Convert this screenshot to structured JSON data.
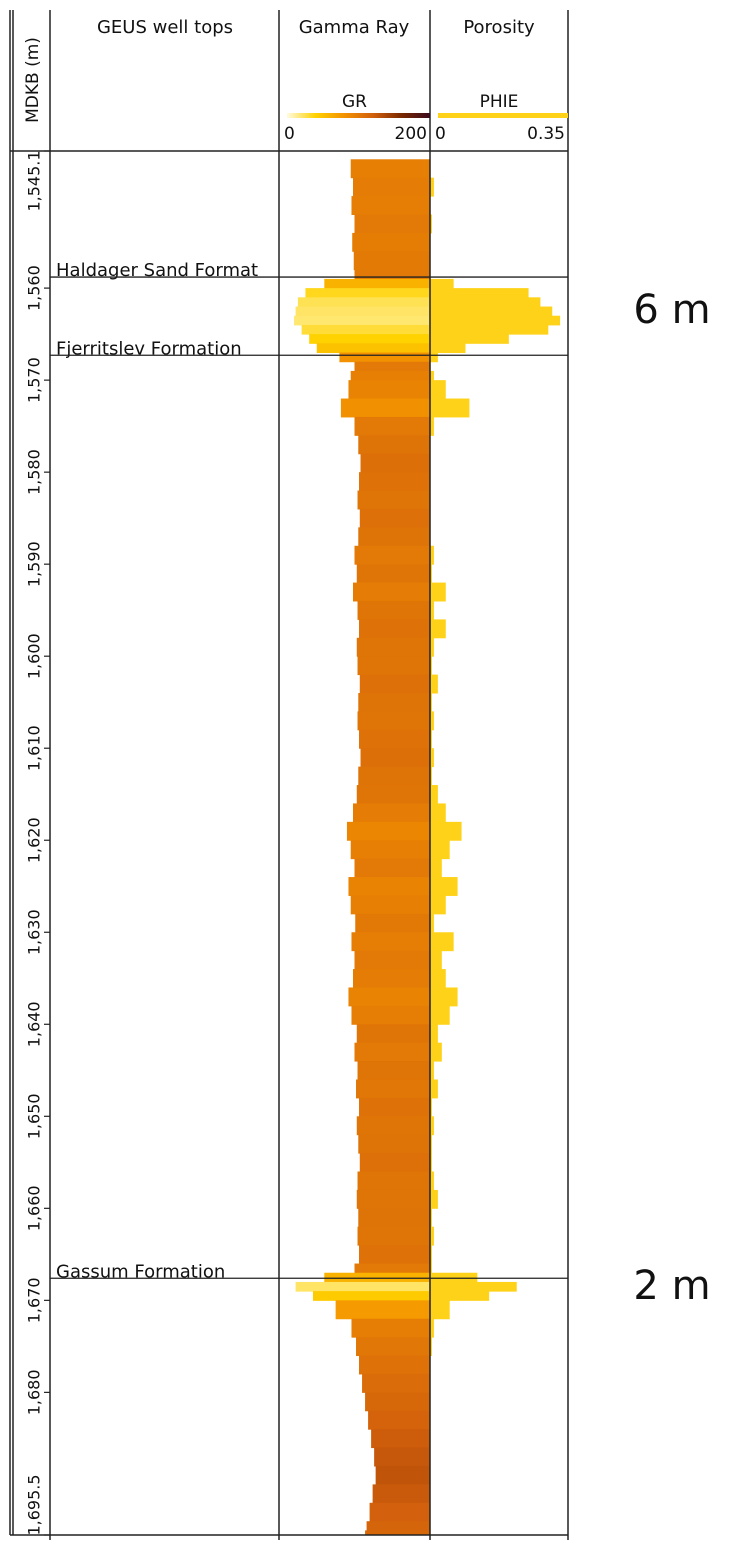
{
  "chart_data": {
    "type": "well_log",
    "ylabel": "MDKB (m)",
    "ylim": [
      1545.1,
      1695.5
    ],
    "yticks": [
      {
        "value": 1545.1,
        "label": "1,545.1"
      },
      {
        "value": 1560,
        "label": "1,560"
      },
      {
        "value": 1570,
        "label": "1,570"
      },
      {
        "value": 1580,
        "label": "1,580"
      },
      {
        "value": 1590,
        "label": "1,590"
      },
      {
        "value": 1600,
        "label": "1,600"
      },
      {
        "value": 1610,
        "label": "1,610"
      },
      {
        "value": 1620,
        "label": "1,620"
      },
      {
        "value": 1630,
        "label": "1,630"
      },
      {
        "value": 1640,
        "label": "1,640"
      },
      {
        "value": 1650,
        "label": "1,650"
      },
      {
        "value": 1660,
        "label": "1,660"
      },
      {
        "value": 1670,
        "label": "1,670"
      },
      {
        "value": 1680,
        "label": "1,680"
      },
      {
        "value": 1695.5,
        "label": "1,695.5"
      }
    ],
    "tops_title": "GEUS well tops",
    "tops": [
      {
        "name": "Haldager Sand Format",
        "depth": 1558.8
      },
      {
        "name": "Fjerritslev Formation",
        "depth": 1567.3
      },
      {
        "name": "Gassum Formation",
        "depth": 1667.6
      }
    ],
    "depth": [
      1546,
      1548,
      1550,
      1552,
      1554,
      1556,
      1558,
      1559,
      1560,
      1561,
      1562,
      1563,
      1564,
      1565,
      1566,
      1567,
      1568,
      1569,
      1570,
      1572,
      1574,
      1576,
      1578,
      1580,
      1582,
      1584,
      1586,
      1588,
      1590,
      1592,
      1594,
      1596,
      1598,
      1600,
      1602,
      1604,
      1606,
      1608,
      1610,
      1612,
      1614,
      1616,
      1618,
      1620,
      1622,
      1624,
      1626,
      1628,
      1630,
      1632,
      1634,
      1636,
      1638,
      1640,
      1642,
      1644,
      1646,
      1648,
      1650,
      1652,
      1654,
      1656,
      1658,
      1660,
      1662,
      1664,
      1666,
      1667,
      1668,
      1669,
      1670,
      1672,
      1674,
      1676,
      1678,
      1680,
      1682,
      1684,
      1686,
      1688,
      1690,
      1692,
      1694,
      1695
    ],
    "tracks": [
      {
        "title": "Gamma Ray",
        "name": "GR",
        "xlim": [
          0,
          200
        ],
        "xticks": [
          0,
          200
        ],
        "colormap": [
          "#fffbe0",
          "#ffd200",
          "#f39200",
          "#d2600c",
          "#7a2800",
          "#3a0a1e"
        ],
        "values": [
          95,
          98,
          96,
          100,
          97,
          99,
          100,
          60,
          35,
          25,
          22,
          20,
          30,
          40,
          50,
          80,
          100,
          95,
          92,
          82,
          100,
          105,
          108,
          106,
          104,
          107,
          105,
          100,
          103,
          98,
          104,
          106,
          103,
          104,
          107,
          105,
          104,
          106,
          108,
          105,
          103,
          98,
          90,
          95,
          100,
          92,
          95,
          101,
          96,
          100,
          98,
          92,
          96,
          103,
          100,
          104,
          102,
          106,
          103,
          105,
          107,
          104,
          103,
          105,
          104,
          106,
          100,
          60,
          22,
          45,
          75,
          96,
          102,
          106,
          110,
          114,
          118,
          122,
          126,
          128,
          124,
          120,
          116,
          114
        ]
      },
      {
        "title": "Porosity",
        "name": "PHIE",
        "xlim": [
          0,
          0.35
        ],
        "xticks": [
          0,
          0.35
        ],
        "color": "#ffd21a",
        "values": [
          0,
          0.01,
          0,
          0.005,
          0,
          0,
          0,
          0.06,
          0.25,
          0.28,
          0.31,
          0.33,
          0.3,
          0.2,
          0.09,
          0.02,
          0,
          0.01,
          0.04,
          0.1,
          0.01,
          0,
          0,
          0,
          0,
          0,
          0,
          0.01,
          0.005,
          0.04,
          0.01,
          0.04,
          0.01,
          0.005,
          0.02,
          0.005,
          0.01,
          0.005,
          0.01,
          0.005,
          0.02,
          0.04,
          0.08,
          0.05,
          0.03,
          0.07,
          0.04,
          0.01,
          0.06,
          0.03,
          0.04,
          0.07,
          0.05,
          0.02,
          0.03,
          0.01,
          0.02,
          0.005,
          0.01,
          0.005,
          0.005,
          0.01,
          0.02,
          0.005,
          0.01,
          0.005,
          0.005,
          0.12,
          0.22,
          0.15,
          0.05,
          0.01,
          0.005,
          0,
          0,
          0,
          0,
          0,
          0,
          0,
          0,
          0,
          0,
          0
        ]
      }
    ],
    "annotations": [
      "6 m",
      "2 m"
    ]
  }
}
